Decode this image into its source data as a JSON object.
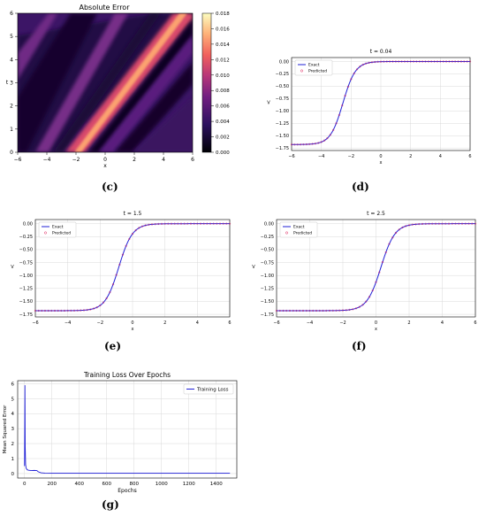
{
  "colors": {
    "exact": "#1f1fd6",
    "predicted": "#e0245e",
    "loss": "#1f1fd6",
    "grid": "#d9d9d9"
  },
  "captions": {
    "c": "(c)",
    "d": "(d)",
    "e": "(e)",
    "f": "(f)",
    "g": "(g)"
  },
  "heatmap": {
    "title": "Absolute Error",
    "xlabel": "x",
    "ylabel": "t",
    "xticks": [
      "−6",
      "−4",
      "−2",
      "0",
      "2",
      "4",
      "6"
    ],
    "yticks": [
      "0",
      "1",
      "2",
      "3",
      "4",
      "5",
      "6"
    ],
    "cbar_ticks": [
      "0.000",
      "0.002",
      "0.004",
      "0.006",
      "0.008",
      "0.010",
      "0.012",
      "0.014",
      "0.016",
      "0.018"
    ]
  },
  "kink_common": {
    "xlabel": "x",
    "ylabel": "V",
    "xticks": [
      "−6",
      "−4",
      "−2",
      "0",
      "2",
      "4",
      "6"
    ],
    "yticks": [
      "0.00",
      "−0.25",
      "−0.50",
      "−0.75",
      "−1.00",
      "−1.25",
      "−1.50",
      "−1.75"
    ],
    "legend": [
      "Exact",
      "Predicted"
    ]
  },
  "loss": {
    "title": "Training Loss Over Epochs",
    "xlabel": "Epochs",
    "ylabel": "Mean Squared Error",
    "xticks": [
      "0",
      "200",
      "400",
      "600",
      "800",
      "1000",
      "1200",
      "1400"
    ],
    "yticks": [
      "0",
      "1",
      "2",
      "3",
      "4",
      "5",
      "6"
    ],
    "legend": "Training Loss"
  },
  "chart_data": [
    {
      "type": "heatmap",
      "title": "Absolute Error",
      "xlabel": "x",
      "ylabel": "t",
      "xlim": [
        -6,
        6
      ],
      "ylim": [
        0,
        6
      ],
      "colorbar_range": [
        0,
        0.018
      ],
      "description_bands": [
        {
          "x_at_t0": -2.6,
          "x_at_t6": 5.4,
          "peak": 0.018
        },
        {
          "x_at_t0": -2.0,
          "x_at_t6": 6.0,
          "peak": 0.004
        }
      ]
    },
    {
      "type": "line",
      "title": "t = 0.04",
      "xlabel": "x",
      "ylabel": "V",
      "xlim": [
        -6,
        6
      ],
      "ylim": [
        -1.8,
        0.08
      ],
      "series": [
        {
          "name": "Exact",
          "kind": "line",
          "center": -2.55,
          "width": 0.42,
          "amplitude": 1.68
        },
        {
          "name": "Predicted",
          "kind": "scatter",
          "center": -2.55,
          "width": 0.42,
          "amplitude": 1.68
        }
      ]
    },
    {
      "type": "line",
      "title": "t = 1.5",
      "xlabel": "x",
      "ylabel": "V",
      "xlim": [
        -6,
        6
      ],
      "ylim": [
        -1.8,
        0.08
      ],
      "series": [
        {
          "name": "Exact",
          "kind": "line",
          "center": -0.85,
          "width": 0.42,
          "amplitude": 1.68
        },
        {
          "name": "Predicted",
          "kind": "scatter",
          "center": -0.85,
          "width": 0.42,
          "amplitude": 1.68
        }
      ]
    },
    {
      "type": "line",
      "title": "t = 2.5",
      "xlabel": "x",
      "ylabel": "V",
      "xlim": [
        -6,
        6
      ],
      "ylim": [
        -1.8,
        0.08
      ],
      "series": [
        {
          "name": "Exact",
          "kind": "line",
          "center": 0.3,
          "width": 0.42,
          "amplitude": 1.68
        },
        {
          "name": "Predicted",
          "kind": "scatter",
          "center": 0.3,
          "width": 0.42,
          "amplitude": 1.68
        }
      ]
    },
    {
      "type": "line",
      "title": "Training Loss Over Epochs",
      "xlabel": "Epochs",
      "ylabel": "Mean Squared Error",
      "xlim": [
        -50,
        1550
      ],
      "ylim": [
        -0.3,
        6.2
      ],
      "series": [
        {
          "name": "Training Loss",
          "x": [
            0,
            3,
            5,
            8,
            12,
            20,
            30,
            50,
            70,
            90,
            100,
            120,
            150,
            200,
            300,
            400,
            600,
            800,
            1000,
            1200,
            1400,
            1500
          ],
          "y": [
            0.5,
            5.9,
            1.8,
            0.6,
            0.35,
            0.25,
            0.22,
            0.2,
            0.21,
            0.2,
            0.12,
            0.05,
            0.03,
            0.02,
            0.02,
            0.02,
            0.02,
            0.02,
            0.02,
            0.02,
            0.02,
            0.02
          ]
        }
      ]
    }
  ]
}
